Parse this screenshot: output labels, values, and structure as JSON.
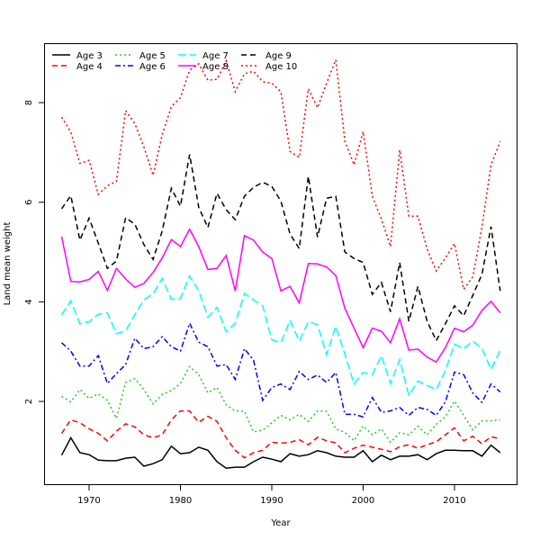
{
  "chart_data": {
    "type": "line",
    "title": "",
    "xlabel": "Year",
    "ylabel": "Land mean weight",
    "xlim": [
      1965.5,
      2017.2
    ],
    "ylim": [
      0.33,
      9.2
    ],
    "xticks": [
      "1970",
      "1980",
      "1990",
      "2000",
      "2010"
    ],
    "yticks": [
      "2",
      "4",
      "6",
      "8"
    ],
    "grid": false,
    "legend_position": "top-left",
    "x_start": 1967,
    "x_end": 2015,
    "series": [
      {
        "name": "Age 3",
        "color": "#000000",
        "style": "solid",
        "values": [
          0.92,
          1.27,
          0.97,
          0.93,
          0.82,
          0.81,
          0.81,
          0.86,
          0.88,
          0.7,
          0.75,
          0.83,
          1.1,
          0.95,
          0.97,
          1.08,
          1.02,
          0.79,
          0.66,
          0.68,
          0.68,
          0.79,
          0.88,
          0.84,
          0.79,
          0.95,
          0.9,
          0.93,
          1.01,
          0.97,
          0.9,
          0.88,
          0.88,
          1.01,
          0.79,
          0.92,
          0.83,
          0.9,
          0.9,
          0.93,
          0.83,
          0.95,
          1.02,
          1.02,
          1.01,
          1.01,
          0.9,
          1.12,
          0.97
        ]
      },
      {
        "name": "Age 4",
        "color": "#ff0000",
        "style": "dashed",
        "values": [
          1.36,
          1.63,
          1.57,
          1.45,
          1.36,
          1.21,
          1.4,
          1.55,
          1.49,
          1.33,
          1.27,
          1.33,
          1.63,
          1.81,
          1.81,
          1.58,
          1.7,
          1.6,
          1.27,
          1.02,
          0.87,
          0.97,
          1.02,
          1.18,
          1.16,
          1.18,
          1.23,
          1.13,
          1.28,
          1.21,
          1.17,
          0.97,
          1.06,
          1.12,
          1.08,
          1.04,
          0.99,
          1.09,
          1.13,
          1.06,
          1.13,
          1.19,
          1.33,
          1.47,
          1.21,
          1.3,
          1.15,
          1.29,
          1.25
        ]
      },
      {
        "name": "Age 5",
        "color": "#22cc22",
        "style": "dotted",
        "values": [
          2.1,
          1.99,
          2.24,
          2.06,
          2.15,
          2.02,
          1.66,
          2.38,
          2.46,
          2.24,
          1.95,
          2.14,
          2.22,
          2.36,
          2.7,
          2.54,
          2.17,
          2.28,
          1.93,
          1.81,
          1.8,
          1.39,
          1.42,
          1.57,
          1.72,
          1.63,
          1.74,
          1.6,
          1.81,
          1.8,
          1.45,
          1.38,
          1.21,
          1.51,
          1.33,
          1.45,
          1.18,
          1.37,
          1.33,
          1.5,
          1.33,
          1.54,
          1.69,
          2.01,
          1.72,
          1.43,
          1.61,
          1.61,
          1.63
        ]
      },
      {
        "name": "Age 6",
        "color": "#0000ff",
        "style": "dashdot",
        "values": [
          3.18,
          3.01,
          2.71,
          2.71,
          2.92,
          2.36,
          2.56,
          2.74,
          3.27,
          3.06,
          3.1,
          3.3,
          3.1,
          3.01,
          3.57,
          3.19,
          3.1,
          2.71,
          2.74,
          2.44,
          3.06,
          2.83,
          2.02,
          2.28,
          2.35,
          2.24,
          2.6,
          2.44,
          2.53,
          2.38,
          2.58,
          1.74,
          1.74,
          1.69,
          2.08,
          1.78,
          1.81,
          1.88,
          1.72,
          1.88,
          1.84,
          1.72,
          1.99,
          2.59,
          2.54,
          2.17,
          1.98,
          2.35,
          2.19
        ]
      },
      {
        "name": "Age 7",
        "color": "#00ffff",
        "style": "longdash",
        "values": [
          3.74,
          4.02,
          3.56,
          3.6,
          3.75,
          3.78,
          3.36,
          3.42,
          3.74,
          4.04,
          4.16,
          4.47,
          4.05,
          4.07,
          4.52,
          4.22,
          3.69,
          3.89,
          3.4,
          3.57,
          4.17,
          4.04,
          3.92,
          3.24,
          3.18,
          3.63,
          3.21,
          3.6,
          3.54,
          2.94,
          3.51,
          2.95,
          2.35,
          2.58,
          2.54,
          2.92,
          2.36,
          2.84,
          2.12,
          2.41,
          2.32,
          2.24,
          2.62,
          3.15,
          3.06,
          3.21,
          3.07,
          2.64,
          3.03
        ]
      },
      {
        "name": "Age 8",
        "color": "#ff00ff",
        "style": "solid",
        "values": [
          5.31,
          4.41,
          4.4,
          4.45,
          4.61,
          4.23,
          4.67,
          4.46,
          4.29,
          4.37,
          4.59,
          4.88,
          5.25,
          5.11,
          5.46,
          5.11,
          4.65,
          4.67,
          4.93,
          4.22,
          5.33,
          5.24,
          5.0,
          4.87,
          4.22,
          4.31,
          3.98,
          4.77,
          4.76,
          4.7,
          4.53,
          3.87,
          3.47,
          3.08,
          3.47,
          3.41,
          3.18,
          3.66,
          3.03,
          3.05,
          2.89,
          2.79,
          3.08,
          3.47,
          3.4,
          3.53,
          3.83,
          4.01,
          3.78
        ]
      },
      {
        "name": "Age 9",
        "color": "#000000",
        "style": "dashed",
        "values": [
          5.87,
          6.13,
          5.24,
          5.68,
          5.18,
          4.67,
          4.82,
          5.69,
          5.56,
          5.15,
          4.85,
          5.42,
          6.28,
          5.92,
          6.96,
          5.9,
          5.49,
          6.18,
          5.85,
          5.65,
          6.12,
          6.3,
          6.4,
          6.32,
          6.02,
          5.36,
          5.07,
          6.52,
          5.3,
          6.08,
          6.12,
          5.0,
          4.87,
          4.79,
          4.15,
          4.39,
          3.8,
          4.79,
          3.61,
          4.31,
          3.61,
          3.22,
          3.56,
          3.92,
          3.72,
          4.13,
          4.55,
          5.51,
          4.22
        ]
      },
      {
        "name": "Age 10",
        "color": "#ff0000",
        "style": "dotted",
        "values": [
          7.71,
          7.41,
          6.78,
          6.84,
          6.16,
          6.33,
          6.42,
          7.84,
          7.58,
          7.11,
          6.54,
          7.35,
          7.92,
          8.1,
          8.65,
          8.78,
          8.45,
          8.47,
          8.84,
          8.22,
          8.58,
          8.63,
          8.42,
          8.39,
          8.22,
          7.02,
          6.9,
          8.28,
          7.9,
          8.39,
          8.86,
          7.23,
          6.75,
          7.42,
          6.12,
          5.66,
          5.11,
          7.05,
          5.72,
          5.72,
          5.06,
          4.62,
          4.88,
          5.17,
          4.25,
          4.5,
          5.5,
          6.75,
          7.22
        ]
      }
    ]
  }
}
